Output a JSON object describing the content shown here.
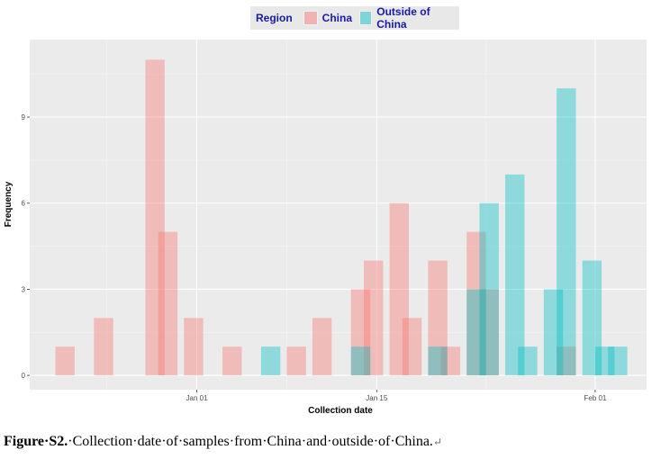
{
  "chart_data": {
    "type": "histogram",
    "title": "",
    "xlabel": "Collection date",
    "ylabel": "Frequency",
    "x_ticks": [
      "Jan 01",
      "Jan 15",
      "Feb 01"
    ],
    "x_tick_dates": [
      "2020-01-01",
      "2020-01-15",
      "2020-02-01"
    ],
    "xlim": [
      "2019-12-19",
      "2020-02-05"
    ],
    "y_ticks": [
      0,
      3,
      6,
      9
    ],
    "ylim": [
      -0.5,
      11.7
    ],
    "bin_width_days": 1.5,
    "grid": true,
    "legend_position": "top",
    "series": [
      {
        "name": "China",
        "color": "#F8766D",
        "bins": [
          {
            "start": "2019-12-21",
            "count": 1
          },
          {
            "start": "2019-12-24",
            "count": 2
          },
          {
            "start": "2019-12-28",
            "count": 11
          },
          {
            "start": "2019-12-29",
            "count": 5
          },
          {
            "start": "2019-12-31",
            "count": 2
          },
          {
            "start": "2020-01-03",
            "count": 1
          },
          {
            "start": "2020-01-08",
            "count": 1
          },
          {
            "start": "2020-01-10",
            "count": 2
          },
          {
            "start": "2020-01-13",
            "count": 3
          },
          {
            "start": "2020-01-14",
            "count": 4
          },
          {
            "start": "2020-01-16",
            "count": 6
          },
          {
            "start": "2020-01-17",
            "count": 2
          },
          {
            "start": "2020-01-19",
            "count": 4
          },
          {
            "start": "2020-01-20",
            "count": 1
          },
          {
            "start": "2020-01-22",
            "count": 5
          },
          {
            "start": "2020-01-23",
            "count": 3
          },
          {
            "start": "2020-01-29",
            "count": 1
          }
        ]
      },
      {
        "name": "Outside of China",
        "color": "#00BFC4",
        "bins": [
          {
            "start": "2020-01-06",
            "count": 1
          },
          {
            "start": "2020-01-13",
            "count": 1
          },
          {
            "start": "2020-01-19",
            "count": 1
          },
          {
            "start": "2020-01-22",
            "count": 3
          },
          {
            "start": "2020-01-23",
            "count": 6
          },
          {
            "start": "2020-01-25",
            "count": 7
          },
          {
            "start": "2020-01-26",
            "count": 1
          },
          {
            "start": "2020-01-28",
            "count": 3
          },
          {
            "start": "2020-01-29",
            "count": 10
          },
          {
            "start": "2020-01-31",
            "count": 4
          },
          {
            "start": "2020-02-01",
            "count": 1
          },
          {
            "start": "2020-02-02",
            "count": 1
          }
        ]
      }
    ]
  },
  "legend": {
    "title": "Region",
    "items": [
      {
        "label": "China",
        "color": "#F8766D"
      },
      {
        "label": "Outside of China",
        "color": "#00BFC4"
      }
    ]
  },
  "caption": {
    "label": "Figure·S2.",
    "text": "·Collection·date·of·samples·from·China·and·outside·of·China.",
    "mark": "↵"
  }
}
